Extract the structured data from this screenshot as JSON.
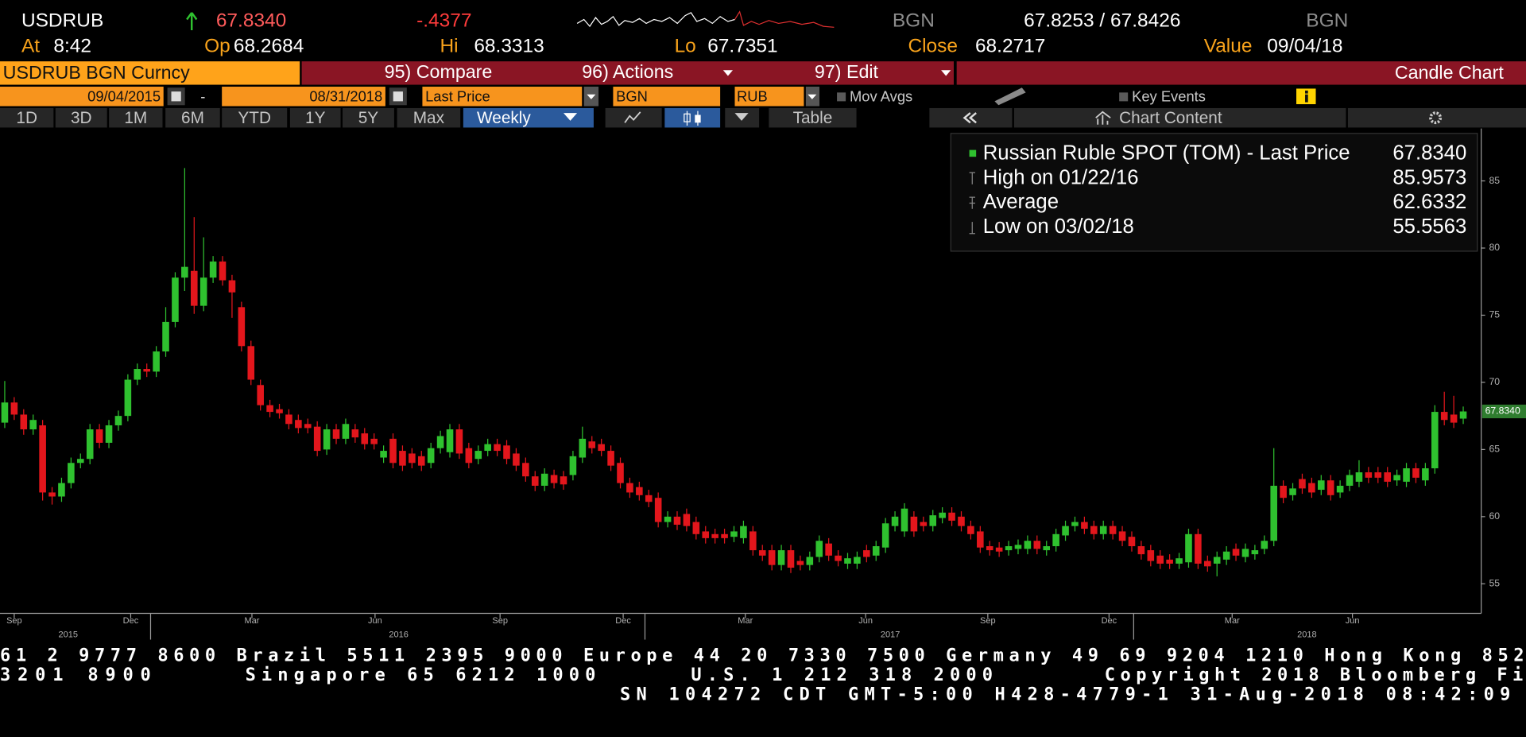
{
  "header": {
    "ticker": "USDRUB",
    "last": "67.8340",
    "change": "-.4377",
    "source": "BGN",
    "bid_ask": "67.8253 / 67.8426",
    "source2": "BGN",
    "fields": [
      {
        "label": "At",
        "value": "8:42"
      },
      {
        "label": "Op",
        "value": "68.2684"
      },
      {
        "label": "Hi",
        "value": "68.3313"
      },
      {
        "label": "Lo",
        "value": "67.7351"
      },
      {
        "label": "Close",
        "value": "68.2717"
      },
      {
        "label": "Value",
        "value": "09/04/18"
      }
    ]
  },
  "toolbar": {
    "security": "USDRUB BGN Curncy",
    "buttons": [
      "95) Compare",
      "96) Actions",
      "97) Edit"
    ],
    "view": "Candle Chart"
  },
  "controls": {
    "start_date": "09/04/2015",
    "separator": "-",
    "end_date": "08/31/2018",
    "field": "Last Price",
    "source": "BGN",
    "currency": "RUB",
    "options": [
      "Mov Avgs",
      "Key Events"
    ]
  },
  "periods": [
    "1D",
    "3D",
    "1M",
    "6M",
    "YTD",
    "1Y",
    "5Y",
    "Max"
  ],
  "frequency": "Weekly",
  "table": "Table",
  "chart_content": "Chart Content",
  "chart_data": {
    "type": "candlestick",
    "open": [
      67.0,
      68.5,
      67.6,
      66.5,
      66.8,
      61.8,
      61.5,
      62.5,
      64.0,
      64.3,
      66.5,
      65.5,
      66.8,
      67.5,
      70.2,
      71.0,
      70.8,
      72.3,
      74.5,
      77.8,
      78.3,
      75.7,
      77.8,
      79.0,
      77.6,
      75.6,
      72.7,
      69.8,
      68.3,
      68.0,
      67.6,
      67.2,
      66.9,
      66.7,
      65.0,
      66.5,
      65.8,
      66.5,
      66.2,
      65.8,
      64.4,
      65.8,
      64.9,
      64.7,
      64.5,
      64.0,
      65.1,
      64.8,
      66.5,
      65.1,
      64.3,
      64.9,
      65.4,
      65.3,
      64.7,
      64.0,
      63.0,
      62.3,
      63.1,
      63.0,
      63.1,
      64.4,
      65.6,
      65.4,
      64.9,
      64.0,
      62.5,
      62.2,
      61.6,
      61.4,
      59.6,
      60.0,
      60.2,
      59.6,
      58.9,
      58.7,
      58.7,
      58.5,
      58.4,
      58.9,
      57.5,
      57.5,
      56.4,
      57.5,
      56.7,
      56.4,
      57.0,
      58.0,
      57.1,
      56.5,
      56.5,
      57.5,
      57.1,
      57.7,
      59.3,
      58.9,
      60.0,
      59.6,
      59.3,
      59.9,
      60.3,
      60.0,
      59.3,
      58.9,
      57.8,
      57.7,
      57.5,
      57.6,
      57.6,
      58.2,
      57.5,
      57.8,
      58.6,
      59.3,
      59.6,
      59.3,
      58.7,
      59.3,
      58.9,
      58.5,
      57.8,
      57.5,
      57.1,
      56.8,
      56.5,
      56.6,
      58.7,
      56.7,
      56.5,
      56.8,
      57.6,
      57.0,
      57.2,
      57.6,
      58.2,
      62.3,
      61.6,
      62.8,
      62.5,
      62.0,
      62.7,
      61.8,
      62.3,
      62.6,
      63.3,
      63.3,
      63.3,
      62.7,
      62.6,
      63.6,
      62.7,
      63.6,
      67.8,
      67.6,
      67.3
    ],
    "high": [
      70.1,
      68.9,
      68.0,
      67.6,
      67.2,
      62.2,
      62.9,
      64.4,
      64.7,
      66.9,
      66.9,
      67.2,
      67.9,
      70.6,
      71.4,
      71.4,
      72.7,
      75.6,
      78.2,
      85.9573,
      82.3,
      80.8,
      79.4,
      79.4,
      78.0,
      76.0,
      73.1,
      70.2,
      68.7,
      68.4,
      68.0,
      67.6,
      67.3,
      67.1,
      66.9,
      66.9,
      67.3,
      66.9,
      66.6,
      66.2,
      65.3,
      66.2,
      65.3,
      65.1,
      64.9,
      65.5,
      66.4,
      66.9,
      66.9,
      65.5,
      65.3,
      65.8,
      65.8,
      65.7,
      65.1,
      64.4,
      63.4,
      63.6,
      63.5,
      63.4,
      64.9,
      66.7,
      66.0,
      65.8,
      65.3,
      64.4,
      62.9,
      62.6,
      62.0,
      61.8,
      60.4,
      60.4,
      60.6,
      60.0,
      59.3,
      59.1,
      59.1,
      59.3,
      59.7,
      59.3,
      57.9,
      57.9,
      57.9,
      57.9,
      57.1,
      57.4,
      58.6,
      58.4,
      57.5,
      57.3,
      57.4,
      57.9,
      58.2,
      59.9,
      60.4,
      61.0,
      60.4,
      60.0,
      60.5,
      60.7,
      60.7,
      60.4,
      59.7,
      59.3,
      58.2,
      58.1,
      58.2,
      58.3,
      58.6,
      58.6,
      58.2,
      59.1,
      59.7,
      60.0,
      60.0,
      59.7,
      59.7,
      59.7,
      59.3,
      58.9,
      58.2,
      57.9,
      57.5,
      57.2,
      57.3,
      59.1,
      59.1,
      57.1,
      57.4,
      57.8,
      58.0,
      58.0,
      57.9,
      58.6,
      65.1,
      62.7,
      62.5,
      63.2,
      62.9,
      63.1,
      63.1,
      62.7,
      63.5,
      64.2,
      63.7,
      63.7,
      63.7,
      63.5,
      64.0,
      64.0,
      64.0,
      68.3,
      69.3,
      69.0,
      68.2
    ],
    "low": [
      66.6,
      67.2,
      66.1,
      66.1,
      61.2,
      60.9,
      61.1,
      62.1,
      63.6,
      63.9,
      65.1,
      65.1,
      66.4,
      67.1,
      69.8,
      70.4,
      70.4,
      71.9,
      74.1,
      76.8,
      75.1,
      75.3,
      77.4,
      77.2,
      74.8,
      72.3,
      69.8,
      67.9,
      67.4,
      67.3,
      66.5,
      66.2,
      66.2,
      64.5,
      64.6,
      65.4,
      65.4,
      65.5,
      65.0,
      65.0,
      64.0,
      63.6,
      63.4,
      63.6,
      63.4,
      63.6,
      64.7,
      64.4,
      64.3,
      63.6,
      63.9,
      64.5,
      64.5,
      63.9,
      63.4,
      62.6,
      61.9,
      61.9,
      62.1,
      62.0,
      62.7,
      64.0,
      64.7,
      64.5,
      63.4,
      62.1,
      61.4,
      61.2,
      60.7,
      59.2,
      59.2,
      59.0,
      58.9,
      58.3,
      58.0,
      58.0,
      58.0,
      58.1,
      58.0,
      57.1,
      56.7,
      56.0,
      56.0,
      55.8,
      56.0,
      56.0,
      56.6,
      56.7,
      56.3,
      56.1,
      56.1,
      56.6,
      56.7,
      57.3,
      58.9,
      58.5,
      58.5,
      58.9,
      58.9,
      59.5,
      59.3,
      58.9,
      58.3,
      57.3,
      57.1,
      57.0,
      57.1,
      57.2,
      57.2,
      57.2,
      57.1,
      57.4,
      58.2,
      58.9,
      58.7,
      58.3,
      58.3,
      58.3,
      57.8,
      57.4,
      56.8,
      56.3,
      56.1,
      56.1,
      56.1,
      56.2,
      56.1,
      55.9,
      55.5563,
      56.4,
      56.7,
      56.6,
      56.8,
      57.2,
      57.8,
      61.0,
      61.2,
      61.7,
      61.4,
      61.6,
      61.2,
      61.4,
      61.9,
      62.2,
      62.5,
      62.5,
      62.2,
      62.3,
      62.2,
      62.5,
      62.3,
      63.2,
      66.8,
      66.6,
      66.9
    ],
    "close": [
      68.5,
      67.6,
      66.5,
      67.2,
      61.8,
      61.5,
      62.5,
      64.0,
      64.3,
      66.5,
      65.5,
      66.8,
      67.5,
      70.2,
      71.0,
      70.8,
      72.3,
      74.5,
      77.8,
      78.6,
      75.7,
      77.8,
      79.0,
      77.6,
      76.7,
      72.7,
      70.2,
      68.3,
      67.8,
      67.7,
      66.9,
      66.6,
      66.6,
      64.9,
      66.5,
      65.8,
      66.9,
      65.9,
      65.4,
      65.4,
      64.9,
      64.0,
      63.8,
      64.0,
      63.8,
      65.1,
      66.0,
      66.5,
      64.7,
      64.0,
      64.9,
      65.4,
      64.9,
      64.3,
      63.8,
      63.0,
      62.3,
      63.2,
      62.5,
      62.4,
      64.5,
      65.8,
      65.1,
      64.9,
      63.8,
      62.5,
      61.8,
      61.6,
      61.1,
      59.6,
      60.0,
      59.4,
      59.3,
      58.7,
      58.4,
      58.4,
      58.4,
      58.9,
      59.3,
      57.5,
      57.1,
      56.4,
      57.5,
      56.2,
      56.4,
      57.0,
      58.2,
      57.1,
      56.7,
      56.9,
      57.0,
      57.0,
      57.8,
      59.5,
      60.0,
      60.6,
      58.9,
      59.3,
      60.1,
      60.3,
      59.7,
      59.3,
      58.7,
      57.7,
      57.5,
      57.4,
      57.8,
      57.9,
      58.2,
      57.6,
      57.8,
      58.7,
      59.3,
      59.6,
      59.1,
      58.7,
      59.3,
      58.7,
      58.2,
      57.8,
      57.2,
      56.7,
      56.5,
      56.5,
      56.9,
      58.7,
      56.5,
      56.3,
      57.0,
      57.4,
      57.1,
      57.6,
      57.5,
      58.2,
      62.3,
      61.4,
      62.1,
      62.1,
      61.8,
      62.7,
      61.6,
      62.3,
      63.1,
      63.3,
      62.9,
      62.9,
      62.6,
      63.1,
      63.6,
      62.9,
      63.6,
      67.8,
      67.2,
      67.0,
      67.834
    ],
    "up_color": "#2fc12f",
    "down_color": "#e3161c",
    "xlim": [
      -0.5,
      155.9
    ],
    "ylim": [
      52.8,
      88.9
    ],
    "yticks": [
      55,
      60,
      65,
      70,
      75,
      80,
      85
    ],
    "xticks": [
      {
        "value": 1.0,
        "label": "Sep"
      },
      {
        "value": 13.3,
        "label": "Dec"
      },
      {
        "value": 26.1,
        "label": "Mar"
      },
      {
        "value": 39.1,
        "label": "Jun"
      },
      {
        "value": 52.3,
        "label": "Sep"
      },
      {
        "value": 65.3,
        "label": "Dec"
      },
      {
        "value": 78.2,
        "label": "Mar"
      },
      {
        "value": 90.9,
        "label": "Jun"
      },
      {
        "value": 103.8,
        "label": "Sep"
      },
      {
        "value": 116.6,
        "label": "Dec"
      },
      {
        "value": 129.6,
        "label": "Mar"
      },
      {
        "value": 142.3,
        "label": "Jun"
      }
    ],
    "year_ticks": [
      15.4,
      67.6,
      119.2
    ],
    "year_labels": [
      {
        "value": 6.7,
        "label": "2015"
      },
      {
        "value": 41.6,
        "label": "2016"
      },
      {
        "value": 93.5,
        "label": "2017"
      },
      {
        "value": 137.5,
        "label": "2018"
      }
    ],
    "legend": {
      "position": "top-right",
      "items": [
        {
          "label": "Russian Ruble SPOT (TOM) - Last Price",
          "value": "67.8340"
        },
        {
          "label": "High on 01/22/16",
          "value": "85.9573"
        },
        {
          "label": "Average",
          "value": "62.6332"
        },
        {
          "label": "Low on 03/02/18",
          "value": "55.5563"
        }
      ]
    }
  },
  "footer": {
    "line1": "61 2 9777 8600 Brazil 5511 2395 9000 Europe 44 20 7330 7500 Germany 49 69 9204 1210 Hong Kong 852",
    "line2": [
      " 3201 8900",
      "Singapore 65 6212 1000",
      "U.S. 1 212 318 2000",
      "Copyright 2018 Bloomberg Fi"
    ],
    "line3": "SN 104272 CDT  GMT-5:00 H428-4779-1 31-Aug-2018 08:42:09"
  }
}
